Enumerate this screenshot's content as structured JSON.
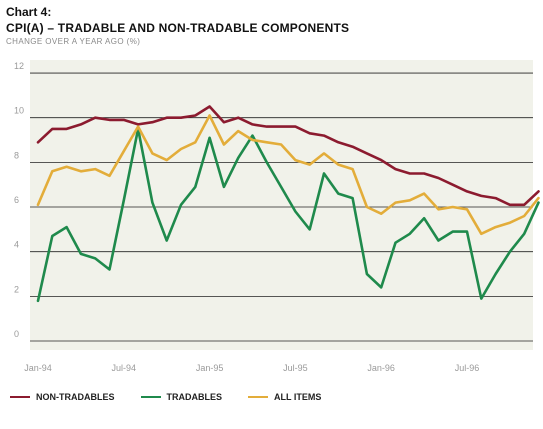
{
  "header": {
    "chart_number": "Chart 4:",
    "title": "CPI(A) – TRADABLE AND NON-TRADABLE COMPONENTS",
    "subtitle": "CHANGE OVER A YEAR AGO (%)"
  },
  "colors": {
    "plot_background": "#f1f2ea",
    "gridline": "#222222",
    "tick_text": "#9a9a9a",
    "non_tradables": "#8c1b2f",
    "tradables": "#1f8a4c",
    "all_items": "#e3ad3a"
  },
  "chart_data": {
    "type": "line",
    "title": "CPI(A) – TRADABLE AND NON-TRADABLE COMPONENTS",
    "ylabel": "CHANGE OVER A YEAR AGO (%)",
    "ylim": [
      0,
      12
    ],
    "yticks": [
      "0",
      "2",
      "4",
      "6",
      "8",
      "10",
      "12"
    ],
    "xtick_labels": [
      "Jan-94",
      "Jul-94",
      "Jan-95",
      "Jul-95",
      "Jan-96",
      "Jul-96"
    ],
    "xtick_index": [
      0,
      6,
      12,
      18,
      24,
      30
    ],
    "x": [
      "Jan-94",
      "Feb-94",
      "Mar-94",
      "Apr-94",
      "May-94",
      "Jun-94",
      "Jul-94",
      "Aug-94",
      "Sep-94",
      "Oct-94",
      "Nov-94",
      "Dec-94",
      "Jan-95",
      "Feb-95",
      "Mar-95",
      "Apr-95",
      "May-95",
      "Jun-95",
      "Jul-95",
      "Aug-95",
      "Sep-95",
      "Oct-95",
      "Nov-95",
      "Dec-95",
      "Jan-96",
      "Feb-96",
      "Mar-96",
      "Apr-96",
      "May-96",
      "Jun-96",
      "Jul-96",
      "Aug-96",
      "Sep-96",
      "Oct-96",
      "Nov-96",
      "Dec-96"
    ],
    "grid": true,
    "legend_position": "bottom",
    "series": [
      {
        "name": "NON-TRADABLES",
        "color": "#8c1b2f",
        "values": [
          8.9,
          9.5,
          9.5,
          9.7,
          10.0,
          9.9,
          9.9,
          9.7,
          9.8,
          10.0,
          10.0,
          10.1,
          10.5,
          9.8,
          10.0,
          9.7,
          9.6,
          9.6,
          9.6,
          9.3,
          9.2,
          8.9,
          8.7,
          8.4,
          8.1,
          7.7,
          7.5,
          7.5,
          7.3,
          7.0,
          6.7,
          6.5,
          6.4,
          6.1,
          6.1,
          6.7
        ]
      },
      {
        "name": "TRADABLES",
        "color": "#1f8a4c",
        "values": [
          1.8,
          4.7,
          5.1,
          3.9,
          3.7,
          3.2,
          6.3,
          9.5,
          6.2,
          4.5,
          6.1,
          6.9,
          9.1,
          6.9,
          8.2,
          9.2,
          8.0,
          6.9,
          5.8,
          5.0,
          7.5,
          6.6,
          6.4,
          3.0,
          2.4,
          4.4,
          4.8,
          5.5,
          4.5,
          4.9,
          4.9,
          1.9,
          3.0,
          4.0,
          4.8,
          6.2
        ]
      },
      {
        "name": "ALL ITEMS",
        "color": "#e3ad3a",
        "values": [
          6.1,
          7.6,
          7.8,
          7.6,
          7.7,
          7.4,
          8.5,
          9.6,
          8.4,
          8.1,
          8.6,
          8.9,
          10.1,
          8.8,
          9.4,
          9.0,
          8.9,
          8.8,
          8.1,
          7.9,
          8.4,
          7.9,
          7.7,
          6.0,
          5.7,
          6.2,
          6.3,
          6.6,
          5.9,
          6.0,
          5.9,
          4.8,
          5.1,
          5.3,
          5.6,
          6.4
        ]
      }
    ]
  },
  "legend": {
    "items": [
      {
        "label": "NON-TRADABLES",
        "color": "#8c1b2f"
      },
      {
        "label": "TRADABLES",
        "color": "#1f8a4c"
      },
      {
        "label": "ALL ITEMS",
        "color": "#e3ad3a"
      }
    ]
  }
}
